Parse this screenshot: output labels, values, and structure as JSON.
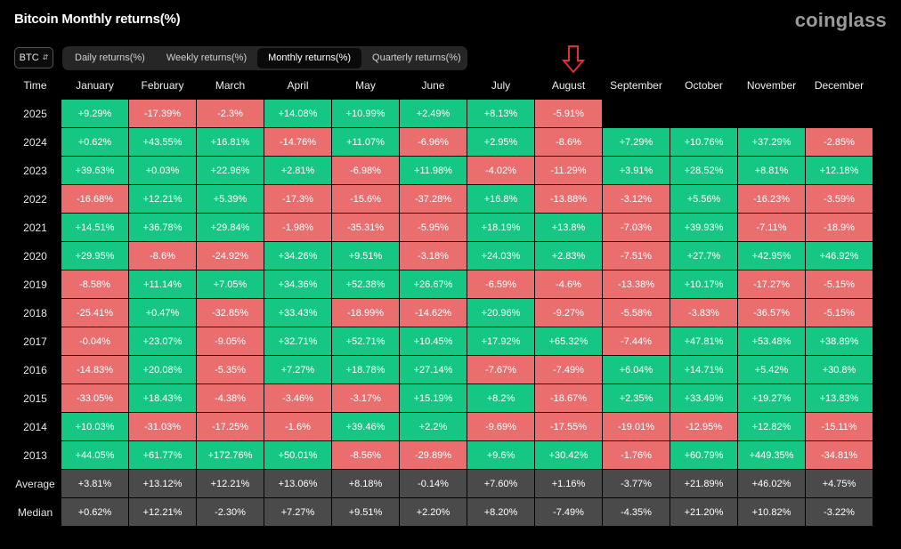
{
  "header": {
    "title": "Bitcoin Monthly returns(%)",
    "brand": "coinglass"
  },
  "asset_select": {
    "value": "BTC"
  },
  "tabs": [
    {
      "label": "Daily returns(%)",
      "active": false
    },
    {
      "label": "Weekly returns(%)",
      "active": false
    },
    {
      "label": "Monthly returns(%)",
      "active": true
    },
    {
      "label": "Quarterly returns(%)",
      "active": false
    }
  ],
  "colors": {
    "positive": "#16c784",
    "negative": "#ea6e6e",
    "stat": "#4a4a4a",
    "arrow": "#e03030"
  },
  "table": {
    "time_header": "Time",
    "months": [
      "January",
      "February",
      "March",
      "April",
      "May",
      "June",
      "July",
      "August",
      "September",
      "October",
      "November",
      "December"
    ],
    "rows": [
      {
        "year": "2025",
        "values": [
          "+9.29%",
          "-17.39%",
          "-2.3%",
          "+14.08%",
          "+10.99%",
          "+2.49%",
          "+8.13%",
          "-5.91%",
          "",
          "",
          "",
          ""
        ]
      },
      {
        "year": "2024",
        "values": [
          "+0.62%",
          "+43.55%",
          "+16.81%",
          "-14.76%",
          "+11.07%",
          "-6.96%",
          "+2.95%",
          "-8.6%",
          "+7.29%",
          "+10.76%",
          "+37.29%",
          "-2.85%"
        ]
      },
      {
        "year": "2023",
        "values": [
          "+39.63%",
          "+0.03%",
          "+22.96%",
          "+2.81%",
          "-6.98%",
          "+11.98%",
          "-4.02%",
          "-11.29%",
          "+3.91%",
          "+28.52%",
          "+8.81%",
          "+12.18%"
        ]
      },
      {
        "year": "2022",
        "values": [
          "-16.68%",
          "+12.21%",
          "+5.39%",
          "-17.3%",
          "-15.6%",
          "-37.28%",
          "+16.8%",
          "-13.88%",
          "-3.12%",
          "+5.56%",
          "-16.23%",
          "-3.59%"
        ]
      },
      {
        "year": "2021",
        "values": [
          "+14.51%",
          "+36.78%",
          "+29.84%",
          "-1.98%",
          "-35.31%",
          "-5.95%",
          "+18.19%",
          "+13.8%",
          "-7.03%",
          "+39.93%",
          "-7.11%",
          "-18.9%"
        ]
      },
      {
        "year": "2020",
        "values": [
          "+29.95%",
          "-8.6%",
          "-24.92%",
          "+34.26%",
          "+9.51%",
          "-3.18%",
          "+24.03%",
          "+2.83%",
          "-7.51%",
          "+27.7%",
          "+42.95%",
          "+46.92%"
        ]
      },
      {
        "year": "2019",
        "values": [
          "-8.58%",
          "+11.14%",
          "+7.05%",
          "+34.36%",
          "+52.38%",
          "+26.67%",
          "-6.59%",
          "-4.6%",
          "-13.38%",
          "+10.17%",
          "-17.27%",
          "-5.15%"
        ]
      },
      {
        "year": "2018",
        "values": [
          "-25.41%",
          "+0.47%",
          "-32.85%",
          "+33.43%",
          "-18.99%",
          "-14.62%",
          "+20.96%",
          "-9.27%",
          "-5.58%",
          "-3.83%",
          "-36.57%",
          "-5.15%"
        ]
      },
      {
        "year": "2017",
        "values": [
          "-0.04%",
          "+23.07%",
          "-9.05%",
          "+32.71%",
          "+52.71%",
          "+10.45%",
          "+17.92%",
          "+65.32%",
          "-7.44%",
          "+47.81%",
          "+53.48%",
          "+38.89%"
        ]
      },
      {
        "year": "2016",
        "values": [
          "-14.83%",
          "+20.08%",
          "-5.35%",
          "+7.27%",
          "+18.78%",
          "+27.14%",
          "-7.67%",
          "-7.49%",
          "+6.04%",
          "+14.71%",
          "+5.42%",
          "+30.8%"
        ]
      },
      {
        "year": "2015",
        "values": [
          "-33.05%",
          "+18.43%",
          "-4.38%",
          "-3.46%",
          "-3.17%",
          "+15.19%",
          "+8.2%",
          "-18.67%",
          "+2.35%",
          "+33.49%",
          "+19.27%",
          "+13.83%"
        ]
      },
      {
        "year": "2014",
        "values": [
          "+10.03%",
          "-31.03%",
          "-17.25%",
          "-1.6%",
          "+39.46%",
          "+2.2%",
          "-9.69%",
          "-17.55%",
          "-19.01%",
          "-12.95%",
          "+12.82%",
          "-15.11%"
        ]
      },
      {
        "year": "2013",
        "values": [
          "+44.05%",
          "+61.77%",
          "+172.76%",
          "+50.01%",
          "-8.56%",
          "-29.89%",
          "+9.6%",
          "+30.42%",
          "-1.76%",
          "+60.79%",
          "+449.35%",
          "-34.81%"
        ]
      }
    ],
    "stats": [
      {
        "label": "Average",
        "values": [
          "+3.81%",
          "+13.12%",
          "+12.21%",
          "+13.06%",
          "+8.18%",
          "-0.14%",
          "+7.60%",
          "+1.16%",
          "-3.77%",
          "+21.89%",
          "+46.02%",
          "+4.75%"
        ]
      },
      {
        "label": "Median",
        "values": [
          "+0.62%",
          "+12.21%",
          "-2.30%",
          "+7.27%",
          "+9.51%",
          "+2.20%",
          "+8.20%",
          "-7.49%",
          "-4.35%",
          "+21.20%",
          "+10.82%",
          "-3.22%"
        ]
      }
    ]
  },
  "annotation": {
    "icon": "arrow-down-icon",
    "target_month": "August"
  }
}
